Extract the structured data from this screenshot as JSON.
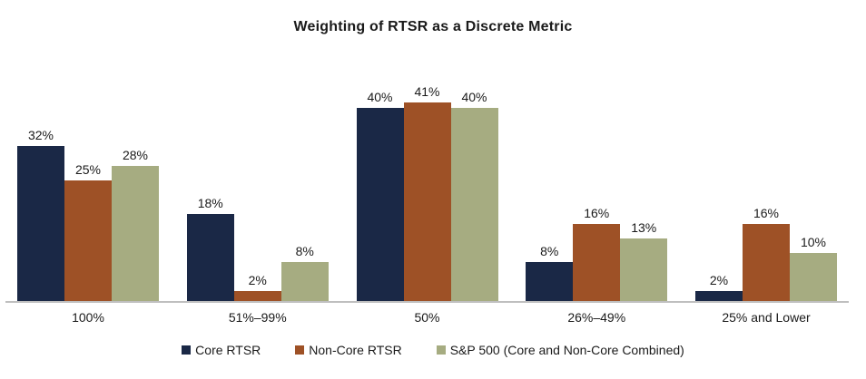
{
  "window": {
    "background": "#ffffff"
  },
  "chart_data": {
    "type": "bar",
    "title": "Weighting of RTSR as a Discrete Metric",
    "categories": [
      "100%",
      "51%–99%",
      "50%",
      "26%–49%",
      "25% and Lower"
    ],
    "series": [
      {
        "name": "Core RTSR",
        "color": "#1a2846",
        "values": [
          32,
          18,
          40,
          8,
          2
        ]
      },
      {
        "name": "Non-Core RTSR",
        "color": "#9e5126",
        "values": [
          25,
          2,
          41,
          16,
          16
        ]
      },
      {
        "name": "S&P 500 (Core and Non-Core Combined)",
        "color": "#a6ac81",
        "values": [
          28,
          8,
          40,
          13,
          10
        ]
      }
    ],
    "value_label_format": "{v}%",
    "xlabel": "",
    "ylabel": "",
    "ylim": [
      0,
      45
    ],
    "grid": false,
    "y_axis_visible": false,
    "legend_position": "bottom",
    "axis_line_color": "#bfbfbf",
    "text_color": "#1a1a1a"
  }
}
